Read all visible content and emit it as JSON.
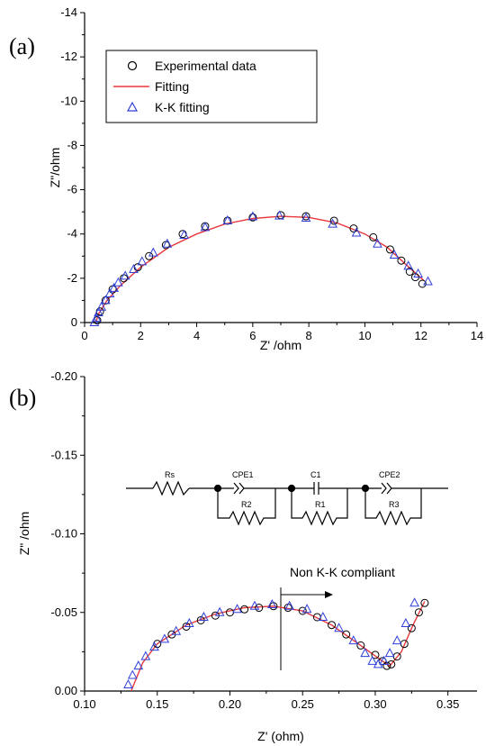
{
  "chart_data": [
    {
      "panel": "(a)",
      "type": "scatter",
      "xlabel": "Z' /ohm",
      "ylabel": "Z\"/ohm",
      "xlim": [
        0,
        14
      ],
      "ylim": [
        0,
        -14
      ],
      "xticks": [
        "0",
        "2",
        "4",
        "6",
        "8",
        "10",
        "12",
        "14"
      ],
      "yticks": [
        "0",
        "-2",
        "-4",
        "-6",
        "-8",
        "-10",
        "-12",
        "-14"
      ],
      "legend": {
        "placement": "top-left",
        "entries": [
          "Experimental data",
          "Fitting",
          "K-K fitting"
        ]
      },
      "colors": {
        "experimental": "#000000",
        "fitting": "#e8383d",
        "kk": "#2f3fd8"
      },
      "series": [
        {
          "name": "Experimental data",
          "marker": "circle",
          "points": [
            [
              0.45,
              -0.1
            ],
            [
              0.55,
              -0.5
            ],
            [
              0.75,
              -1.0
            ],
            [
              1.0,
              -1.5
            ],
            [
              1.4,
              -2.0
            ],
            [
              1.9,
              -2.5
            ],
            [
              2.3,
              -3.0
            ],
            [
              2.9,
              -3.5
            ],
            [
              3.5,
              -4.0
            ],
            [
              4.3,
              -4.35
            ],
            [
              5.1,
              -4.6
            ],
            [
              6.0,
              -4.75
            ],
            [
              7.0,
              -4.85
            ],
            [
              7.9,
              -4.8
            ],
            [
              8.9,
              -4.6
            ],
            [
              9.6,
              -4.25
            ],
            [
              10.3,
              -3.85
            ],
            [
              10.9,
              -3.3
            ],
            [
              11.3,
              -2.8
            ],
            [
              11.6,
              -2.3
            ],
            [
              11.8,
              -2.05
            ],
            [
              12.05,
              -1.75
            ]
          ]
        },
        {
          "name": "Fitting",
          "marker": "line",
          "points": [
            [
              0.4,
              0.0
            ],
            [
              0.5,
              -0.4
            ],
            [
              0.8,
              -1.0
            ],
            [
              1.3,
              -1.7
            ],
            [
              2.0,
              -2.5
            ],
            [
              3.0,
              -3.4
            ],
            [
              4.0,
              -4.0
            ],
            [
              5.0,
              -4.45
            ],
            [
              6.0,
              -4.7
            ],
            [
              7.0,
              -4.8
            ],
            [
              8.0,
              -4.75
            ],
            [
              9.0,
              -4.5
            ],
            [
              10.0,
              -4.0
            ],
            [
              10.8,
              -3.4
            ],
            [
              11.4,
              -2.7
            ],
            [
              12.1,
              -1.9
            ]
          ]
        },
        {
          "name": "K-K fitting",
          "marker": "triangle",
          "points": [
            [
              0.35,
              0.0
            ],
            [
              0.42,
              -0.2
            ],
            [
              0.5,
              -0.45
            ],
            [
              0.6,
              -0.7
            ],
            [
              0.75,
              -1.0
            ],
            [
              0.9,
              -1.3
            ],
            [
              1.05,
              -1.55
            ],
            [
              1.2,
              -1.8
            ],
            [
              1.45,
              -2.1
            ],
            [
              1.75,
              -2.4
            ],
            [
              2.05,
              -2.75
            ],
            [
              2.45,
              -3.15
            ],
            [
              2.95,
              -3.55
            ],
            [
              3.55,
              -3.95
            ],
            [
              4.3,
              -4.3
            ],
            [
              5.1,
              -4.6
            ],
            [
              6.0,
              -4.78
            ],
            [
              6.95,
              -4.82
            ],
            [
              7.9,
              -4.72
            ],
            [
              8.85,
              -4.45
            ],
            [
              9.7,
              -4.05
            ],
            [
              10.45,
              -3.55
            ],
            [
              11.05,
              -3.05
            ],
            [
              11.55,
              -2.55
            ],
            [
              11.9,
              -2.2
            ],
            [
              12.25,
              -1.85
            ]
          ]
        }
      ]
    },
    {
      "panel": "(b)",
      "type": "scatter",
      "xlabel": "Z' (ohm)",
      "ylabel": "Z\" /ohm",
      "xlim": [
        0.1,
        0.37
      ],
      "ylim": [
        0.0,
        -0.2
      ],
      "xticks": [
        "0.10",
        "0.15",
        "0.20",
        "0.25",
        "0.30",
        "0.35"
      ],
      "yticks": [
        "0.00",
        "-0.05",
        "-0.10",
        "-0.15",
        "-0.20"
      ],
      "annotation": {
        "text": "Non K-K compliant",
        "x_line": 0.235
      },
      "circuit": {
        "labels": [
          "Rs",
          "CPE1",
          "R2",
          "C1",
          "R1",
          "CPE2",
          "R3"
        ]
      },
      "colors": {
        "experimental": "#000000",
        "fitting": "#e8383d",
        "kk": "#2f3fd8"
      },
      "series": [
        {
          "name": "Experimental data",
          "marker": "circle",
          "points": [
            [
              0.15,
              -0.03
            ],
            [
              0.16,
              -0.036
            ],
            [
              0.17,
              -0.041
            ],
            [
              0.18,
              -0.045
            ],
            [
              0.19,
              -0.048
            ],
            [
              0.2,
              -0.05
            ],
            [
              0.21,
              -0.052
            ],
            [
              0.22,
              -0.053
            ],
            [
              0.23,
              -0.054
            ],
            [
              0.24,
              -0.053
            ],
            [
              0.25,
              -0.051
            ],
            [
              0.26,
              -0.047
            ],
            [
              0.27,
              -0.042
            ],
            [
              0.28,
              -0.036
            ],
            [
              0.29,
              -0.029
            ],
            [
              0.3,
              -0.023
            ],
            [
              0.305,
              -0.019
            ],
            [
              0.308,
              -0.016
            ],
            [
              0.311,
              -0.017
            ],
            [
              0.315,
              -0.022
            ],
            [
              0.32,
              -0.03
            ],
            [
              0.325,
              -0.04
            ],
            [
              0.33,
              -0.05
            ],
            [
              0.334,
              -0.056
            ]
          ]
        },
        {
          "name": "Fitting",
          "marker": "line",
          "points": [
            [
              0.132,
              0.0
            ],
            [
              0.14,
              -0.018
            ],
            [
              0.15,
              -0.03
            ],
            [
              0.17,
              -0.042
            ],
            [
              0.19,
              -0.049
            ],
            [
              0.21,
              -0.053
            ],
            [
              0.23,
              -0.054
            ],
            [
              0.25,
              -0.051
            ],
            [
              0.27,
              -0.042
            ],
            [
              0.29,
              -0.029
            ],
            [
              0.305,
              -0.019
            ],
            [
              0.31,
              -0.016
            ],
            [
              0.318,
              -0.025
            ],
            [
              0.326,
              -0.042
            ],
            [
              0.334,
              -0.057
            ]
          ]
        },
        {
          "name": "K-K fitting",
          "marker": "triangle",
          "points": [
            [
              0.13,
              -0.004
            ],
            [
              0.133,
              -0.01
            ],
            [
              0.137,
              -0.016
            ],
            [
              0.142,
              -0.022
            ],
            [
              0.148,
              -0.028
            ],
            [
              0.155,
              -0.033
            ],
            [
              0.163,
              -0.038
            ],
            [
              0.172,
              -0.043
            ],
            [
              0.182,
              -0.047
            ],
            [
              0.193,
              -0.05
            ],
            [
              0.205,
              -0.052
            ],
            [
              0.217,
              -0.054
            ],
            [
              0.229,
              -0.055
            ],
            [
              0.241,
              -0.054
            ],
            [
              0.253,
              -0.052
            ],
            [
              0.264,
              -0.047
            ],
            [
              0.275,
              -0.04
            ],
            [
              0.285,
              -0.032
            ],
            [
              0.293,
              -0.024
            ],
            [
              0.298,
              -0.019
            ],
            [
              0.302,
              -0.017
            ],
            [
              0.306,
              -0.019
            ],
            [
              0.31,
              -0.024
            ],
            [
              0.315,
              -0.032
            ],
            [
              0.321,
              -0.043
            ],
            [
              0.327,
              -0.056
            ]
          ]
        }
      ]
    }
  ]
}
